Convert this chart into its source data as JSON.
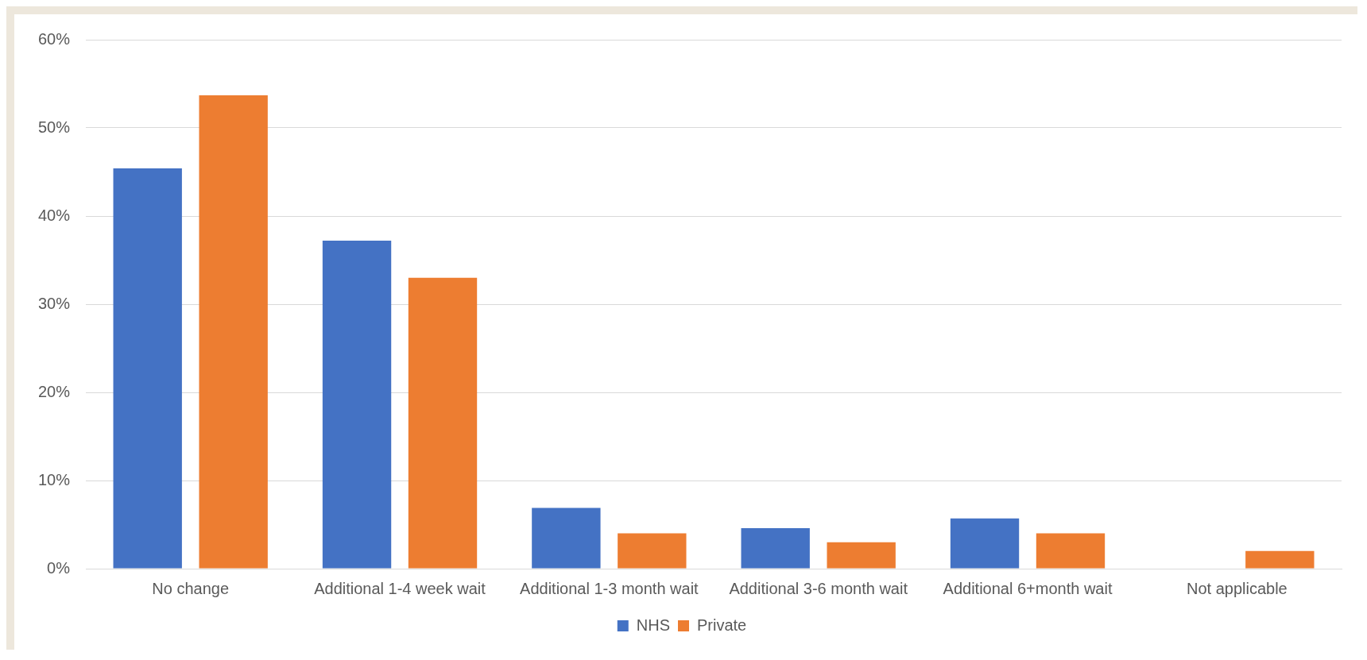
{
  "chart_data": {
    "type": "bar",
    "categories": [
      "No change",
      "Additional 1-4 week wait",
      "Additional 1-3 month wait",
      "Additional 3-6 month wait",
      "Additional 6+month wait",
      "Not applicable"
    ],
    "series": [
      {
        "name": "NHS",
        "color": "#4472c4",
        "values": [
          45.4,
          37.2,
          6.9,
          4.6,
          5.7,
          0
        ]
      },
      {
        "name": "Private",
        "color": "#ed7d31",
        "values": [
          53.7,
          33.0,
          4.0,
          3.0,
          4.0,
          2.0
        ]
      }
    ],
    "ylim": [
      0,
      60
    ],
    "yticks": [
      {
        "value": 0,
        "label": "0%"
      },
      {
        "value": 10,
        "label": "10%"
      },
      {
        "value": 20,
        "label": "20%"
      },
      {
        "value": 30,
        "label": "30%"
      },
      {
        "value": 40,
        "label": "40%"
      },
      {
        "value": 50,
        "label": "50%"
      },
      {
        "value": 60,
        "label": "60%"
      }
    ],
    "grid": "y",
    "legend": "bottom"
  }
}
